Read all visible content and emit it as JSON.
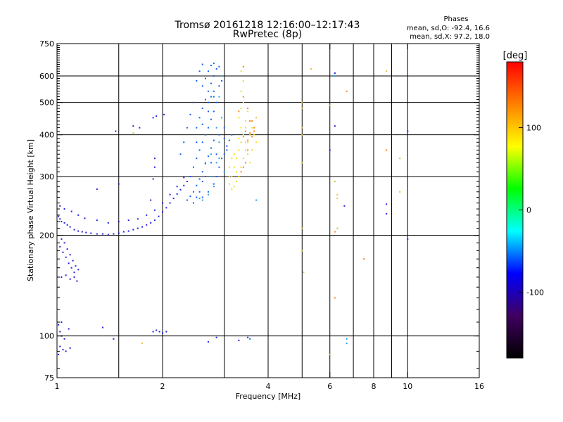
{
  "chart_data": {
    "type": "scatter",
    "title": "Tromsø 20161218 12:16:00–12:17:43",
    "subtitle": "RwPretec (8p)",
    "xlabel": "Frequency [MHz]",
    "ylabel": "Stationary phase Virtual Height [km]",
    "x_scale": "log",
    "y_scale": "log",
    "xlim": [
      1,
      16
    ],
    "ylim": [
      75,
      750
    ],
    "x_ticks": [
      {
        "value": 1,
        "label": "1"
      },
      {
        "value": 2,
        "label": "2"
      },
      {
        "value": 4,
        "label": "4"
      },
      {
        "value": 6,
        "label": "6"
      },
      {
        "value": 8,
        "label": "8"
      },
      {
        "value": 10,
        "label": "10"
      },
      {
        "value": 16,
        "label": "16"
      }
    ],
    "y_ticks": [
      {
        "value": 75,
        "label": "75"
      },
      {
        "value": 100,
        "label": "100"
      },
      {
        "value": 200,
        "label": "200"
      },
      {
        "value": 300,
        "label": "300"
      },
      {
        "value": 400,
        "label": "400"
      },
      {
        "value": 500,
        "label": "500"
      },
      {
        "value": 600,
        "label": "600"
      },
      {
        "value": 750,
        "label": "750"
      }
    ],
    "gridlines_x": [
      1.5,
      2,
      3,
      4,
      5,
      6,
      7,
      8,
      9,
      10
    ],
    "gridlines_y": [
      100,
      200,
      300,
      400,
      500,
      600
    ],
    "grid": true,
    "phase_stats": {
      "heading": "Phases",
      "o_line": "mean, sd,O: -92.4, 16.6",
      "x_line": "mean, sd,X:  97.2, 18.0"
    },
    "colorbar": {
      "label": "[deg]",
      "range": [
        -180,
        180
      ],
      "ticks": [
        {
          "value": 100,
          "label": "100"
        },
        {
          "value": 0,
          "label": "0"
        },
        {
          "value": -100,
          "label": "-100"
        }
      ],
      "colors": [
        "#ff0000",
        "#ff8000",
        "#ffff00",
        "#00ff00",
        "#00ffff",
        "#0000ff",
        "#400060",
        "#000000"
      ]
    },
    "series": [
      {
        "color": "#2020e0",
        "points": [
          [
            1.01,
            228
          ],
          [
            1.02,
            224
          ],
          [
            1.03,
            220
          ],
          [
            1.05,
            218
          ],
          [
            1.07,
            215
          ],
          [
            1.09,
            212
          ],
          [
            1.12,
            208
          ],
          [
            1.15,
            206
          ],
          [
            1.18,
            205
          ],
          [
            1.21,
            204
          ],
          [
            1.25,
            203
          ],
          [
            1.3,
            202
          ],
          [
            1.35,
            202
          ],
          [
            1.4,
            201
          ],
          [
            1.45,
            202
          ],
          [
            1.5,
            203
          ],
          [
            1.55,
            205
          ],
          [
            1.6,
            206
          ],
          [
            1.65,
            208
          ],
          [
            1.7,
            210
          ],
          [
            1.75,
            212
          ],
          [
            1.8,
            215
          ],
          [
            1.85,
            218
          ],
          [
            1.9,
            222
          ],
          [
            1.95,
            228
          ],
          [
            2.0,
            235
          ],
          [
            2.05,
            242
          ],
          [
            2.1,
            250
          ],
          [
            2.15,
            258
          ],
          [
            2.2,
            266
          ],
          [
            2.25,
            274
          ],
          [
            2.3,
            282
          ],
          [
            2.35,
            290
          ],
          [
            2.4,
            300
          ],
          [
            1.02,
            245
          ],
          [
            1.05,
            240
          ],
          [
            1.1,
            236
          ],
          [
            1.15,
            230
          ],
          [
            1.2,
            225
          ],
          [
            1.3,
            222
          ],
          [
            1.4,
            218
          ],
          [
            1.5,
            220
          ],
          [
            1.6,
            222
          ],
          [
            1.7,
            224
          ],
          [
            1.8,
            230
          ],
          [
            1.9,
            238
          ],
          [
            2.0,
            250
          ],
          [
            2.1,
            265
          ],
          [
            2.2,
            280
          ],
          [
            2.3,
            298
          ],
          [
            1.02,
            185
          ],
          [
            1.04,
            178
          ],
          [
            1.06,
            172
          ],
          [
            1.08,
            165
          ],
          [
            1.1,
            160
          ],
          [
            1.12,
            155
          ],
          [
            1.03,
            195
          ],
          [
            1.05,
            190
          ],
          [
            1.07,
            182
          ],
          [
            1.09,
            175
          ],
          [
            1.11,
            168
          ],
          [
            1.13,
            162
          ],
          [
            1.15,
            158
          ],
          [
            1.03,
            150
          ],
          [
            1.06,
            152
          ],
          [
            1.09,
            148
          ],
          [
            1.12,
            150
          ],
          [
            1.14,
            146
          ],
          [
            1.01,
            108
          ],
          [
            1.02,
            103
          ],
          [
            1.03,
            100
          ],
          [
            1.05,
            98
          ],
          [
            1.02,
            93
          ],
          [
            1.04,
            91
          ],
          [
            1.06,
            90
          ],
          [
            1.01,
            88
          ],
          [
            1.09,
            92
          ],
          [
            1.03,
            110
          ],
          [
            1.08,
            105
          ],
          [
            1.35,
            106
          ],
          [
            1.45,
            98
          ],
          [
            1.88,
            103
          ],
          [
            1.92,
            104
          ],
          [
            1.96,
            103
          ],
          [
            2.0,
            102
          ],
          [
            2.05,
            103
          ],
          [
            1.85,
            255
          ],
          [
            1.88,
            295
          ],
          [
            1.9,
            320
          ],
          [
            1.9,
            340
          ],
          [
            1.88,
            450
          ],
          [
            1.92,
            455
          ],
          [
            1.72,
            420
          ],
          [
            1.65,
            425
          ],
          [
            1.47,
            410
          ],
          [
            1.3,
            275
          ],
          [
            1.5,
            285
          ],
          [
            2.02,
            460
          ],
          [
            2.7,
            96
          ],
          [
            2.85,
            99
          ],
          [
            3.3,
            97
          ],
          [
            3.5,
            99
          ],
          [
            3.55,
            98
          ],
          [
            6.0,
            360
          ],
          [
            6.2,
            425
          ],
          [
            6.2,
            612
          ],
          [
            6.6,
            245
          ],
          [
            8.7,
            248
          ],
          [
            8.7,
            232
          ],
          [
            10.0,
            195
          ],
          [
            10.0,
            410
          ]
        ]
      },
      {
        "color": "#1060f0",
        "points": [
          [
            2.35,
            255
          ],
          [
            2.4,
            262
          ],
          [
            2.45,
            270
          ],
          [
            2.5,
            282
          ],
          [
            2.55,
            295
          ],
          [
            2.6,
            310
          ],
          [
            2.65,
            328
          ],
          [
            2.7,
            345
          ],
          [
            2.75,
            365
          ],
          [
            2.8,
            385
          ],
          [
            2.4,
            300
          ],
          [
            2.45,
            320
          ],
          [
            2.5,
            340
          ],
          [
            2.55,
            360
          ],
          [
            2.6,
            380
          ],
          [
            2.65,
            400
          ],
          [
            2.7,
            420
          ],
          [
            2.75,
            445
          ],
          [
            2.8,
            470
          ],
          [
            2.85,
            500
          ],
          [
            2.5,
            420
          ],
          [
            2.55,
            450
          ],
          [
            2.6,
            480
          ],
          [
            2.65,
            510
          ],
          [
            2.7,
            540
          ],
          [
            2.75,
            570
          ],
          [
            2.8,
            600
          ],
          [
            2.85,
            630
          ],
          [
            2.6,
            560
          ],
          [
            2.65,
            590
          ],
          [
            2.7,
            620
          ],
          [
            2.75,
            645
          ],
          [
            2.8,
            655
          ],
          [
            2.9,
            640
          ],
          [
            2.6,
            650
          ],
          [
            2.55,
            620
          ],
          [
            2.5,
            580
          ],
          [
            2.45,
            500
          ],
          [
            2.4,
            460
          ],
          [
            2.35,
            420
          ],
          [
            2.3,
            380
          ],
          [
            2.25,
            350
          ],
          [
            2.6,
            260
          ],
          [
            2.7,
            270
          ],
          [
            2.8,
            285
          ],
          [
            2.85,
            300
          ],
          [
            2.9,
            320
          ],
          [
            2.95,
            340
          ],
          [
            3.0,
            350
          ],
          [
            3.05,
            370
          ],
          [
            3.1,
            385
          ],
          [
            3.15,
            400
          ],
          [
            2.7,
            500
          ],
          [
            2.75,
            520
          ],
          [
            2.8,
            540
          ],
          [
            2.9,
            560
          ],
          [
            2.95,
            580
          ],
          [
            3.0,
            420
          ],
          [
            2.5,
            260
          ],
          [
            2.45,
            250
          ],
          [
            2.55,
            270
          ],
          [
            2.6,
            290
          ],
          [
            2.65,
            300
          ],
          [
            2.5,
            380
          ],
          [
            2.6,
            430
          ],
          [
            2.7,
            470
          ],
          [
            2.8,
            520
          ],
          [
            2.9,
            400
          ],
          [
            3.0,
            390
          ],
          [
            3.05,
            360
          ],
          [
            2.75,
            330
          ],
          [
            2.85,
            350
          ]
        ]
      },
      {
        "color": "#20a0e8",
        "points": [
          [
            2.65,
            330
          ],
          [
            2.75,
            300
          ],
          [
            2.85,
            420
          ],
          [
            2.9,
            380
          ],
          [
            2.95,
            450
          ],
          [
            2.8,
            280
          ],
          [
            2.7,
            265
          ],
          [
            2.6,
            255
          ],
          [
            3.0,
            310
          ],
          [
            2.55,
            258
          ],
          [
            2.9,
            520
          ],
          [
            2.95,
            600
          ],
          [
            3.55,
            98
          ],
          [
            3.7,
            255
          ],
          [
            6.2,
            600
          ],
          [
            6.7,
            98
          ],
          [
            6.7,
            95
          ],
          [
            2.75,
            350
          ],
          [
            2.85,
            330
          ],
          [
            2.9,
            340
          ]
        ]
      },
      {
        "color": "#f0e010",
        "points": [
          [
            3.1,
            285
          ],
          [
            3.15,
            300
          ],
          [
            3.2,
            320
          ],
          [
            3.25,
            340
          ],
          [
            3.3,
            360
          ],
          [
            3.35,
            380
          ],
          [
            3.4,
            400
          ],
          [
            3.45,
            420
          ],
          [
            3.3,
            300
          ],
          [
            3.35,
            320
          ],
          [
            3.4,
            340
          ],
          [
            3.45,
            360
          ],
          [
            3.5,
            380
          ],
          [
            3.55,
            400
          ],
          [
            3.25,
            290
          ],
          [
            3.2,
            280
          ],
          [
            3.15,
            275
          ],
          [
            3.3,
            450
          ],
          [
            3.35,
            480
          ],
          [
            3.4,
            500
          ],
          [
            3.35,
            540
          ],
          [
            3.4,
            580
          ],
          [
            3.35,
            620
          ],
          [
            3.4,
            640
          ],
          [
            3.1,
            300
          ],
          [
            3.2,
            350
          ],
          [
            3.25,
            310
          ],
          [
            3.45,
            440
          ],
          [
            3.5,
            470
          ],
          [
            3.6,
            420
          ],
          [
            3.65,
            400
          ],
          [
            3.7,
            380
          ],
          [
            3.1,
            320
          ],
          [
            3.15,
            340
          ],
          [
            3.3,
            390
          ],
          [
            3.35,
            420
          ],
          [
            3.45,
            380
          ],
          [
            3.5,
            350
          ],
          [
            3.55,
            330
          ],
          [
            3.6,
            360
          ]
        ]
      },
      {
        "color": "#e0c040",
        "points": [
          [
            5.0,
            500
          ],
          [
            5.0,
            480
          ],
          [
            5.0,
            420
          ],
          [
            5.0,
            400
          ],
          [
            5.0,
            330
          ],
          [
            5.0,
            210
          ],
          [
            5.0,
            180
          ],
          [
            5.05,
            155
          ],
          [
            5.3,
            630
          ],
          [
            6.3,
            265
          ],
          [
            6.3,
            210
          ],
          [
            6.0,
            490
          ],
          [
            6.0,
            88
          ],
          [
            6.2,
            290
          ],
          [
            6.2,
            290
          ],
          [
            6.3,
            258
          ],
          [
            8.7,
            620
          ],
          [
            9.5,
            270
          ],
          [
            9.5,
            340
          ],
          [
            3.7,
            450
          ],
          [
            1.65,
            405
          ],
          [
            1.75,
            95
          ]
        ]
      },
      {
        "color": "#ff8020",
        "points": [
          [
            3.4,
            395
          ],
          [
            3.45,
            410
          ],
          [
            3.5,
            385
          ],
          [
            3.55,
            405
          ],
          [
            3.6,
            395
          ],
          [
            3.65,
            410
          ],
          [
            3.5,
            360
          ],
          [
            3.55,
            440
          ],
          [
            3.6,
            440
          ],
          [
            3.45,
            330
          ],
          [
            3.4,
            320
          ],
          [
            3.35,
            310
          ],
          [
            3.3,
            470
          ],
          [
            3.4,
            520
          ],
          [
            3.5,
            480
          ],
          [
            3.65,
            420
          ],
          [
            6.7,
            540
          ],
          [
            6.2,
            205
          ],
          [
            6.2,
            130
          ],
          [
            7.5,
            170
          ],
          [
            8.7,
            360
          ],
          [
            3.4,
            640
          ]
        ]
      }
    ]
  }
}
